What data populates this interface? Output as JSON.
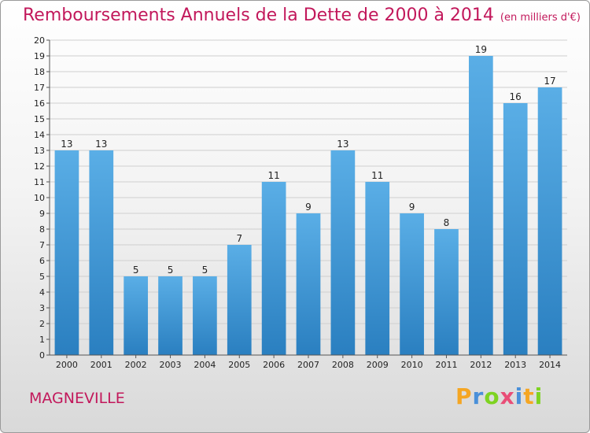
{
  "header": {
    "title": "Remboursements Annuels de la Dette de 2000 à 2014",
    "subtitle": "(en milliers d'€)"
  },
  "footer": {
    "city": "MAGNEVILLE",
    "logo": {
      "letters": [
        "P",
        "r",
        "o",
        "x",
        "i",
        "t",
        "i"
      ],
      "colors": [
        "#f5a623",
        "#4a90d9",
        "#7ed321",
        "#e94e77",
        "#4a90d9",
        "#f5a623",
        "#7ed321"
      ]
    }
  },
  "chart_data": {
    "type": "bar",
    "title": "Remboursements Annuels de la Dette de 2000 à 2014",
    "subtitle": "(en milliers d'€)",
    "xlabel": "",
    "ylabel": "",
    "categories": [
      "2000",
      "2001",
      "2002",
      "2003",
      "2004",
      "2005",
      "2006",
      "2007",
      "2008",
      "2009",
      "2010",
      "2011",
      "2012",
      "2013",
      "2014"
    ],
    "values": [
      13,
      13,
      5,
      5,
      5,
      7,
      11,
      9,
      13,
      11,
      9,
      8,
      19,
      16,
      17
    ],
    "ylim": [
      0,
      20
    ],
    "yticks": [
      0,
      1,
      2,
      3,
      4,
      5,
      6,
      7,
      8,
      9,
      10,
      11,
      12,
      13,
      14,
      15,
      16,
      17,
      18,
      19,
      20
    ],
    "grid": true,
    "bar_color_top": "#5aaee6",
    "bar_color_bottom": "#2a7fc0",
    "grid_color": "#cfcfcf"
  }
}
